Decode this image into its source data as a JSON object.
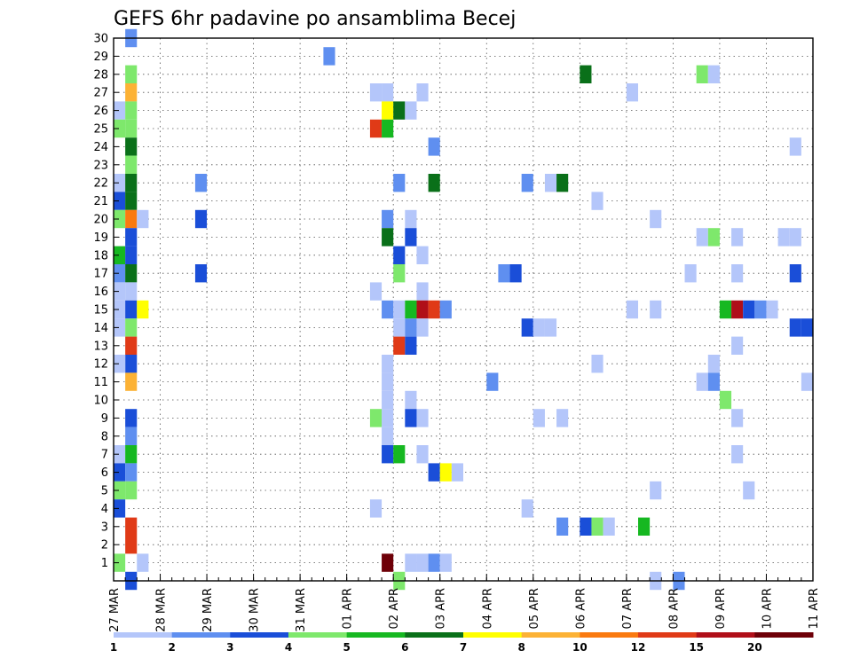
{
  "chart_data": {
    "type": "heatmap",
    "title": "GEFS 6hr padavine po ansamblima Becej",
    "xlabel": "",
    "ylabel": "",
    "x_tick_labels": [
      "27 MAR",
      "28 MAR",
      "29 MAR",
      "30 MAR",
      "31 MAR",
      "01 APR",
      "02 APR",
      "03 APR",
      "04 APR",
      "05 APR",
      "06 APR",
      "07 APR",
      "08 APR",
      "09 APR",
      "10 APR",
      "11 APR"
    ],
    "y_tick_labels": [
      "1",
      "2",
      "3",
      "4",
      "5",
      "6",
      "7",
      "8",
      "9",
      "10",
      "11",
      "12",
      "13",
      "14",
      "15",
      "16",
      "17",
      "18",
      "19",
      "20",
      "21",
      "22",
      "23",
      "24",
      "25",
      "26",
      "27",
      "28",
      "29",
      "30"
    ],
    "xlim_steps": [
      0,
      60
    ],
    "ylim_members": [
      0,
      30
    ],
    "step_hours": 6,
    "grid": true,
    "legend_position": "bottom",
    "color_scale": {
      "labels": [
        "1",
        "2",
        "3",
        "4",
        "5",
        "6",
        "7",
        "8",
        "10",
        "12",
        "15",
        "20"
      ],
      "colors": [
        "#b4c6fa",
        "#5f8ff0",
        "#1a4ed8",
        "#7ee86c",
        "#16b821",
        "#0a7019",
        "#ffff00",
        "#fcb235",
        "#fa7a10",
        "#e03a17",
        "#b00f19",
        "#6e0008"
      ]
    },
    "cells": [
      [
        1,
        30,
        1
      ],
      [
        18,
        29,
        1
      ],
      [
        1,
        28,
        3
      ],
      [
        40,
        28,
        5
      ],
      [
        50,
        28,
        3
      ],
      [
        51,
        28,
        0
      ],
      [
        1,
        27,
        7
      ],
      [
        22,
        27,
        0
      ],
      [
        23,
        27,
        0
      ],
      [
        26,
        27,
        0
      ],
      [
        44,
        27,
        0
      ],
      [
        0,
        26,
        0
      ],
      [
        1,
        26,
        3
      ],
      [
        23,
        26,
        6
      ],
      [
        24,
        26,
        5
      ],
      [
        25,
        26,
        0
      ],
      [
        0,
        25,
        3
      ],
      [
        1,
        25,
        3
      ],
      [
        22,
        25,
        9
      ],
      [
        23,
        25,
        4
      ],
      [
        1,
        24,
        5
      ],
      [
        27,
        24,
        1
      ],
      [
        58,
        24,
        0
      ],
      [
        1,
        23,
        3
      ],
      [
        0,
        22,
        0
      ],
      [
        1,
        22,
        5
      ],
      [
        7,
        22,
        1
      ],
      [
        24,
        22,
        1
      ],
      [
        27,
        22,
        5
      ],
      [
        35,
        22,
        1
      ],
      [
        37,
        22,
        0
      ],
      [
        38,
        22,
        5
      ],
      [
        0,
        21,
        2
      ],
      [
        1,
        21,
        5
      ],
      [
        41,
        21,
        0
      ],
      [
        0,
        20,
        3
      ],
      [
        1,
        20,
        8
      ],
      [
        2,
        20,
        0
      ],
      [
        7,
        20,
        2
      ],
      [
        23,
        20,
        1
      ],
      [
        25,
        20,
        0
      ],
      [
        46,
        20,
        0
      ],
      [
        1,
        19,
        2
      ],
      [
        23,
        19,
        5
      ],
      [
        25,
        19,
        2
      ],
      [
        50,
        19,
        0
      ],
      [
        51,
        19,
        3
      ],
      [
        53,
        19,
        0
      ],
      [
        57,
        19,
        0
      ],
      [
        58,
        19,
        0
      ],
      [
        0,
        18,
        4
      ],
      [
        1,
        18,
        2
      ],
      [
        24,
        18,
        2
      ],
      [
        26,
        18,
        0
      ],
      [
        0,
        17,
        1
      ],
      [
        1,
        17,
        5
      ],
      [
        7,
        17,
        2
      ],
      [
        24,
        17,
        3
      ],
      [
        33,
        17,
        1
      ],
      [
        34,
        17,
        2
      ],
      [
        49,
        17,
        0
      ],
      [
        53,
        17,
        0
      ],
      [
        58,
        17,
        2
      ],
      [
        0,
        16,
        0
      ],
      [
        1,
        16,
        0
      ],
      [
        22,
        16,
        0
      ],
      [
        26,
        16,
        0
      ],
      [
        0,
        15,
        0
      ],
      [
        1,
        15,
        2
      ],
      [
        2,
        15,
        6
      ],
      [
        23,
        15,
        1
      ],
      [
        24,
        15,
        0
      ],
      [
        25,
        15,
        4
      ],
      [
        26,
        15,
        10
      ],
      [
        27,
        15,
        9
      ],
      [
        28,
        15,
        1
      ],
      [
        44,
        15,
        0
      ],
      [
        46,
        15,
        0
      ],
      [
        52,
        15,
        4
      ],
      [
        53,
        15,
        10
      ],
      [
        54,
        15,
        2
      ],
      [
        55,
        15,
        1
      ],
      [
        56,
        15,
        0
      ],
      [
        0,
        14,
        0
      ],
      [
        1,
        14,
        3
      ],
      [
        24,
        14,
        0
      ],
      [
        25,
        14,
        1
      ],
      [
        26,
        14,
        0
      ],
      [
        35,
        14,
        2
      ],
      [
        36,
        14,
        0
      ],
      [
        37,
        14,
        0
      ],
      [
        58,
        14,
        2
      ],
      [
        59,
        14,
        2
      ],
      [
        1,
        13,
        9
      ],
      [
        24,
        13,
        9
      ],
      [
        25,
        13,
        2
      ],
      [
        53,
        13,
        0
      ],
      [
        1,
        12,
        2
      ],
      [
        0,
        12,
        0
      ],
      [
        23,
        12,
        0
      ],
      [
        41,
        12,
        0
      ],
      [
        51,
        12,
        0
      ],
      [
        1,
        11,
        7
      ],
      [
        23,
        11,
        0
      ],
      [
        32,
        11,
        1
      ],
      [
        50,
        11,
        0
      ],
      [
        51,
        11,
        1
      ],
      [
        59,
        11,
        0
      ],
      [
        23,
        10,
        0
      ],
      [
        25,
        10,
        0
      ],
      [
        52,
        10,
        3
      ],
      [
        1,
        9,
        2
      ],
      [
        23,
        9,
        0
      ],
      [
        22,
        9,
        3
      ],
      [
        25,
        9,
        2
      ],
      [
        26,
        9,
        0
      ],
      [
        36,
        9,
        0
      ],
      [
        38,
        9,
        0
      ],
      [
        53,
        9,
        0
      ],
      [
        1,
        8,
        1
      ],
      [
        23,
        8,
        0
      ],
      [
        0,
        7,
        0
      ],
      [
        1,
        7,
        4
      ],
      [
        23,
        7,
        2
      ],
      [
        24,
        7,
        4
      ],
      [
        26,
        7,
        0
      ],
      [
        53,
        7,
        0
      ],
      [
        0,
        6,
        2
      ],
      [
        1,
        6,
        1
      ],
      [
        27,
        6,
        2
      ],
      [
        28,
        6,
        6
      ],
      [
        29,
        6,
        0
      ],
      [
        0,
        5,
        3
      ],
      [
        1,
        5,
        3
      ],
      [
        46,
        5,
        0
      ],
      [
        54,
        5,
        0
      ],
      [
        0,
        4,
        2
      ],
      [
        22,
        4,
        0
      ],
      [
        35,
        4,
        0
      ],
      [
        1,
        3,
        9
      ],
      [
        38,
        3,
        1
      ],
      [
        40,
        3,
        2
      ],
      [
        41,
        3,
        3
      ],
      [
        42,
        3,
        0
      ],
      [
        45,
        3,
        4
      ],
      [
        1,
        2,
        9
      ],
      [
        0,
        1,
        3
      ],
      [
        2,
        1,
        0
      ],
      [
        23,
        1,
        11
      ],
      [
        25,
        1,
        0
      ],
      [
        26,
        1,
        0
      ],
      [
        27,
        1,
        1
      ],
      [
        28,
        1,
        0
      ],
      [
        1,
        0,
        2
      ],
      [
        24,
        0,
        3
      ],
      [
        46,
        0,
        0
      ],
      [
        48,
        0,
        1
      ]
    ]
  }
}
